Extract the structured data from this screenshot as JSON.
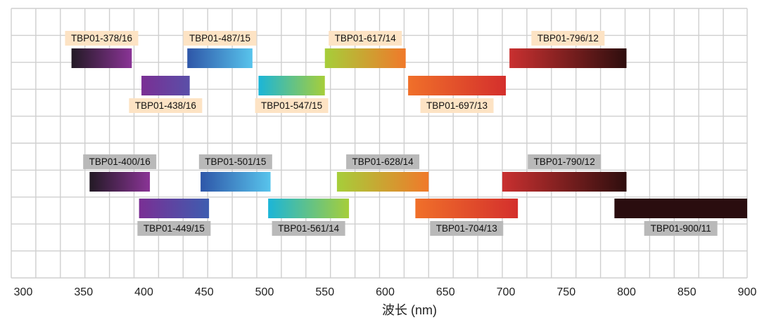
{
  "chart_data": {
    "type": "bar",
    "xlabel": "波长 (nm)",
    "xlim": [
      300,
      900
    ],
    "xticks": [
      300,
      350,
      400,
      450,
      500,
      550,
      600,
      650,
      700,
      750,
      800,
      850,
      900
    ],
    "grid": true,
    "label_colors": {
      "peach": "#fde3c4",
      "gray": "#b9b9b9"
    },
    "filters": [
      {
        "name": "TBP01-378/16",
        "start": 340,
        "end": 390,
        "colors": [
          "#231a25",
          "#8a3496"
        ],
        "label_style": "peach",
        "label_pos": "above"
      },
      {
        "name": "TBP01-438/16",
        "start": 398,
        "end": 438,
        "colors": [
          "#7a2f94",
          "#5a4fa8"
        ],
        "label_style": "peach",
        "label_pos": "below"
      },
      {
        "name": "TBP01-487/15",
        "start": 436,
        "end": 490,
        "colors": [
          "#2e56a8",
          "#58c4ec"
        ],
        "label_style": "peach",
        "label_pos": "above"
      },
      {
        "name": "TBP01-547/15",
        "start": 495,
        "end": 550,
        "colors": [
          "#1bb5d8",
          "#a6ce3a"
        ],
        "label_style": "peach",
        "label_pos": "below"
      },
      {
        "name": "TBP01-617/14",
        "start": 550,
        "end": 617,
        "colors": [
          "#a6ce3a",
          "#f0792a"
        ],
        "label_style": "peach",
        "label_pos": "above"
      },
      {
        "name": "TBP01-697/13",
        "start": 619,
        "end": 700,
        "colors": [
          "#f0702a",
          "#d42f2c"
        ],
        "label_style": "peach",
        "label_pos": "below"
      },
      {
        "name": "TBP01-796/12",
        "start": 703,
        "end": 800,
        "colors": [
          "#c93030",
          "#2e0e0e"
        ],
        "label_style": "peach",
        "label_pos": "above"
      },
      {
        "name": "TBP01-400/16",
        "start": 355,
        "end": 405,
        "colors": [
          "#231a25",
          "#8a3496"
        ],
        "label_style": "gray",
        "label_pos": "above"
      },
      {
        "name": "TBP01-449/15",
        "start": 396,
        "end": 454,
        "colors": [
          "#7a2f94",
          "#3e5db0"
        ],
        "label_style": "gray",
        "label_pos": "below"
      },
      {
        "name": "TBP01-501/15",
        "start": 447,
        "end": 505,
        "colors": [
          "#2e56a8",
          "#58c4ec"
        ],
        "label_style": "gray",
        "label_pos": "above"
      },
      {
        "name": "TBP01-561/14",
        "start": 503,
        "end": 570,
        "colors": [
          "#1bb5d8",
          "#a6ce3a"
        ],
        "label_style": "gray",
        "label_pos": "below"
      },
      {
        "name": "TBP01-628/14",
        "start": 560,
        "end": 636,
        "colors": [
          "#a6ce3a",
          "#f0792a"
        ],
        "label_style": "gray",
        "label_pos": "above"
      },
      {
        "name": "TBP01-704/13",
        "start": 625,
        "end": 710,
        "colors": [
          "#f0702a",
          "#d42f2c"
        ],
        "label_style": "gray",
        "label_pos": "below"
      },
      {
        "name": "TBP01-790/12",
        "start": 697,
        "end": 800,
        "colors": [
          "#c93030",
          "#2e0e0e"
        ],
        "label_style": "gray",
        "label_pos": "above"
      },
      {
        "name": "TBP01-900/11",
        "start": 790,
        "end": 902,
        "colors": [
          "#2a0d0f",
          "#2a0d0f"
        ],
        "label_style": "gray",
        "label_pos": "below"
      }
    ]
  }
}
